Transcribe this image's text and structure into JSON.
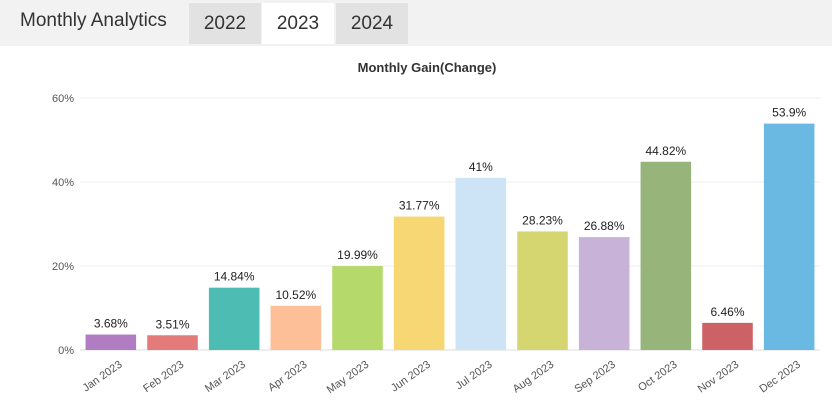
{
  "header": {
    "title": "Monthly Analytics",
    "tabs": [
      {
        "label": "2022",
        "active": false
      },
      {
        "label": "2023",
        "active": true
      },
      {
        "label": "2024",
        "active": false
      }
    ]
  },
  "chart_data": {
    "type": "bar",
    "title": "Monthly Gain(Change)",
    "xlabel": "",
    "ylabel": "",
    "ylim": [
      0,
      60
    ],
    "yticks": [
      "0%",
      "20%",
      "40%",
      "60%"
    ],
    "ytick_values": [
      0,
      20,
      40,
      60
    ],
    "grid": true,
    "categories": [
      "Jan 2023",
      "Feb 2023",
      "Mar 2023",
      "Apr 2023",
      "May 2023",
      "Jun 2023",
      "Jul 2023",
      "Aug 2023",
      "Sep 2023",
      "Oct 2023",
      "Nov 2023",
      "Dec 2023"
    ],
    "values": [
      3.68,
      3.51,
      14.84,
      10.52,
      19.99,
      31.77,
      41,
      28.23,
      26.88,
      44.82,
      6.46,
      53.9
    ],
    "value_labels": [
      "3.68%",
      "3.51%",
      "14.84%",
      "10.52%",
      "19.99%",
      "31.77%",
      "41%",
      "28.23%",
      "26.88%",
      "44.82%",
      "6.46%",
      "53.9%"
    ],
    "colors": [
      "#b07cc2",
      "#e47b7b",
      "#4dbdb3",
      "#fcbf98",
      "#b6d96b",
      "#f6d773",
      "#cde4f7",
      "#d6d670",
      "#c9b2d7",
      "#97b57b",
      "#cd6266",
      "#6ab9e3"
    ]
  }
}
